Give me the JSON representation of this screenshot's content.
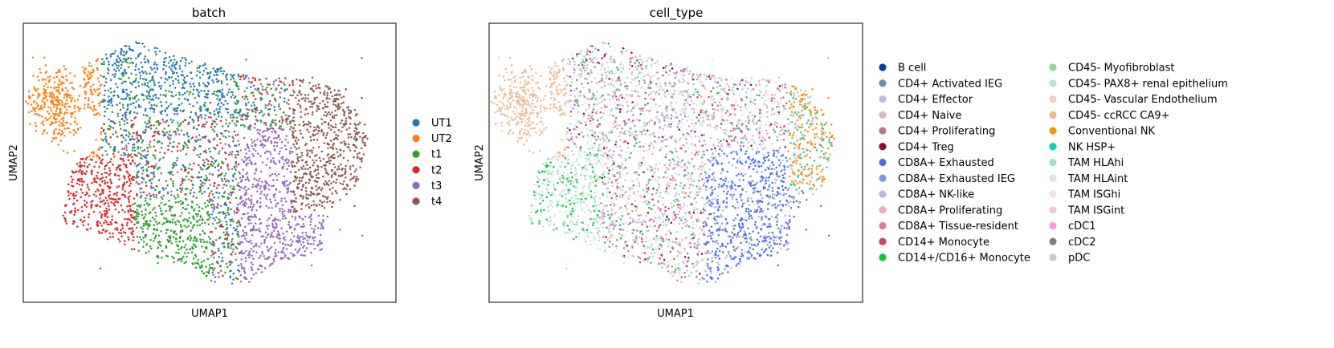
{
  "chart_data": [
    {
      "type": "scatter",
      "title": "batch",
      "xlabel": "UMAP1",
      "ylabel": "UMAP2",
      "grid": false,
      "ticks": false,
      "legend_position": "right",
      "legend": [
        {
          "label": "UT1",
          "color": "#1f77b4"
        },
        {
          "label": "UT2",
          "color": "#ff7f0e"
        },
        {
          "label": "t1",
          "color": "#2ca02c"
        },
        {
          "label": "t2",
          "color": "#d62728"
        },
        {
          "label": "t3",
          "color": "#9467bd"
        },
        {
          "label": "t4",
          "color": "#8c564b"
        }
      ]
    },
    {
      "type": "scatter",
      "title": "cell_type",
      "xlabel": "UMAP1",
      "ylabel": "UMAP2",
      "grid": false,
      "ticks": false,
      "legend_position": "right",
      "legend_columns": 2,
      "legend": [
        {
          "label": "B cell",
          "color": "#023fa5"
        },
        {
          "label": "CD4+ Activated IEG",
          "color": "#7d87b9"
        },
        {
          "label": "CD4+ Effector",
          "color": "#bec1d4"
        },
        {
          "label": "CD4+ Naive",
          "color": "#d6bcc0"
        },
        {
          "label": "CD4+ Proliferating",
          "color": "#bb7784"
        },
        {
          "label": "CD4+ Treg",
          "color": "#8e063b"
        },
        {
          "label": "CD8A+ Exhausted",
          "color": "#4a6fe3"
        },
        {
          "label": "CD8A+ Exhausted IEG",
          "color": "#8595e1"
        },
        {
          "label": "CD8A+ NK-like",
          "color": "#b5bbe3"
        },
        {
          "label": "CD8A+ Proliferating",
          "color": "#e6afb9"
        },
        {
          "label": "CD8A+ Tissue-resident",
          "color": "#e07b91"
        },
        {
          "label": "CD14+ Monocyte",
          "color": "#d33f6a"
        },
        {
          "label": "CD14+/CD16+ Monocyte",
          "color": "#11c638"
        },
        {
          "label": "CD45- Myofibroblast",
          "color": "#8dd593"
        },
        {
          "label": "CD45- PAX8+ renal epithelium",
          "color": "#c6dec7"
        },
        {
          "label": "CD45- Vascular Endothelium",
          "color": "#ead3c6"
        },
        {
          "label": "CD45- ccRCC CA9+",
          "color": "#f0b98d"
        },
        {
          "label": "Conventional NK",
          "color": "#ef9708"
        },
        {
          "label": "NK HSP+",
          "color": "#0fcfc0"
        },
        {
          "label": "TAM HLAhi",
          "color": "#9cded6"
        },
        {
          "label": "TAM HLAint",
          "color": "#d5eae7"
        },
        {
          "label": "TAM ISGhi",
          "color": "#f3e1eb"
        },
        {
          "label": "TAM ISGint",
          "color": "#f6c4e1"
        },
        {
          "label": "cDC1",
          "color": "#f79cd4"
        },
        {
          "label": "cDC2",
          "color": "#7f7f7f"
        },
        {
          "label": "pDC",
          "color": "#c7c7c7"
        }
      ]
    }
  ]
}
